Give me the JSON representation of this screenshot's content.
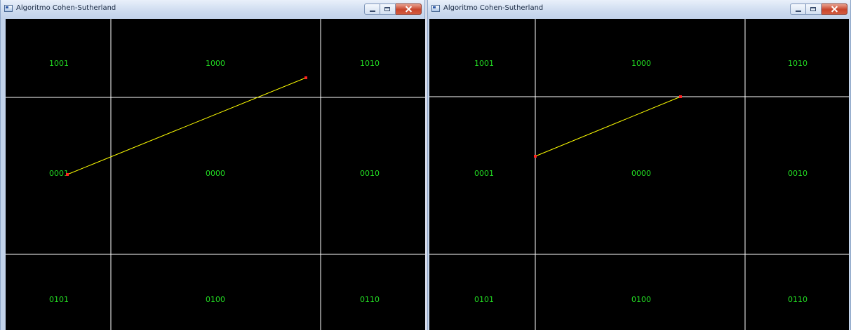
{
  "windows": [
    {
      "id": "left",
      "title": "Algoritmo Cohen-Sutherland",
      "region_codes": [
        {
          "code": "1001",
          "row": 0,
          "col": 0
        },
        {
          "code": "1000",
          "row": 0,
          "col": 1
        },
        {
          "code": "1010",
          "row": 0,
          "col": 2
        },
        {
          "code": "0001",
          "row": 1,
          "col": 0
        },
        {
          "code": "0000",
          "row": 1,
          "col": 1
        },
        {
          "code": "0010",
          "row": 1,
          "col": 2
        },
        {
          "code": "0101",
          "row": 2,
          "col": 0
        },
        {
          "code": "0100",
          "row": 2,
          "col": 1
        },
        {
          "code": "0110",
          "row": 2,
          "col": 2
        }
      ],
      "line_color": "#ffff00",
      "endpoint_color": "#ff2222",
      "grid_color": "#ffffff",
      "label_color": "#22dd22"
    },
    {
      "id": "right",
      "title": "Algoritmo Cohen-Sutherland",
      "region_codes": [
        {
          "code": "1001",
          "row": 0,
          "col": 0
        },
        {
          "code": "1000",
          "row": 0,
          "col": 1
        },
        {
          "code": "1010",
          "row": 0,
          "col": 2
        },
        {
          "code": "0001",
          "row": 1,
          "col": 0
        },
        {
          "code": "0000",
          "row": 1,
          "col": 1
        },
        {
          "code": "0010",
          "row": 1,
          "col": 2
        },
        {
          "code": "0101",
          "row": 2,
          "col": 0
        },
        {
          "code": "0100",
          "row": 2,
          "col": 1
        },
        {
          "code": "0110",
          "row": 2,
          "col": 2
        }
      ],
      "line_color": "#ffff00",
      "endpoint_color": "#ff2222",
      "grid_color": "#ffffff",
      "label_color": "#22dd22"
    }
  ]
}
